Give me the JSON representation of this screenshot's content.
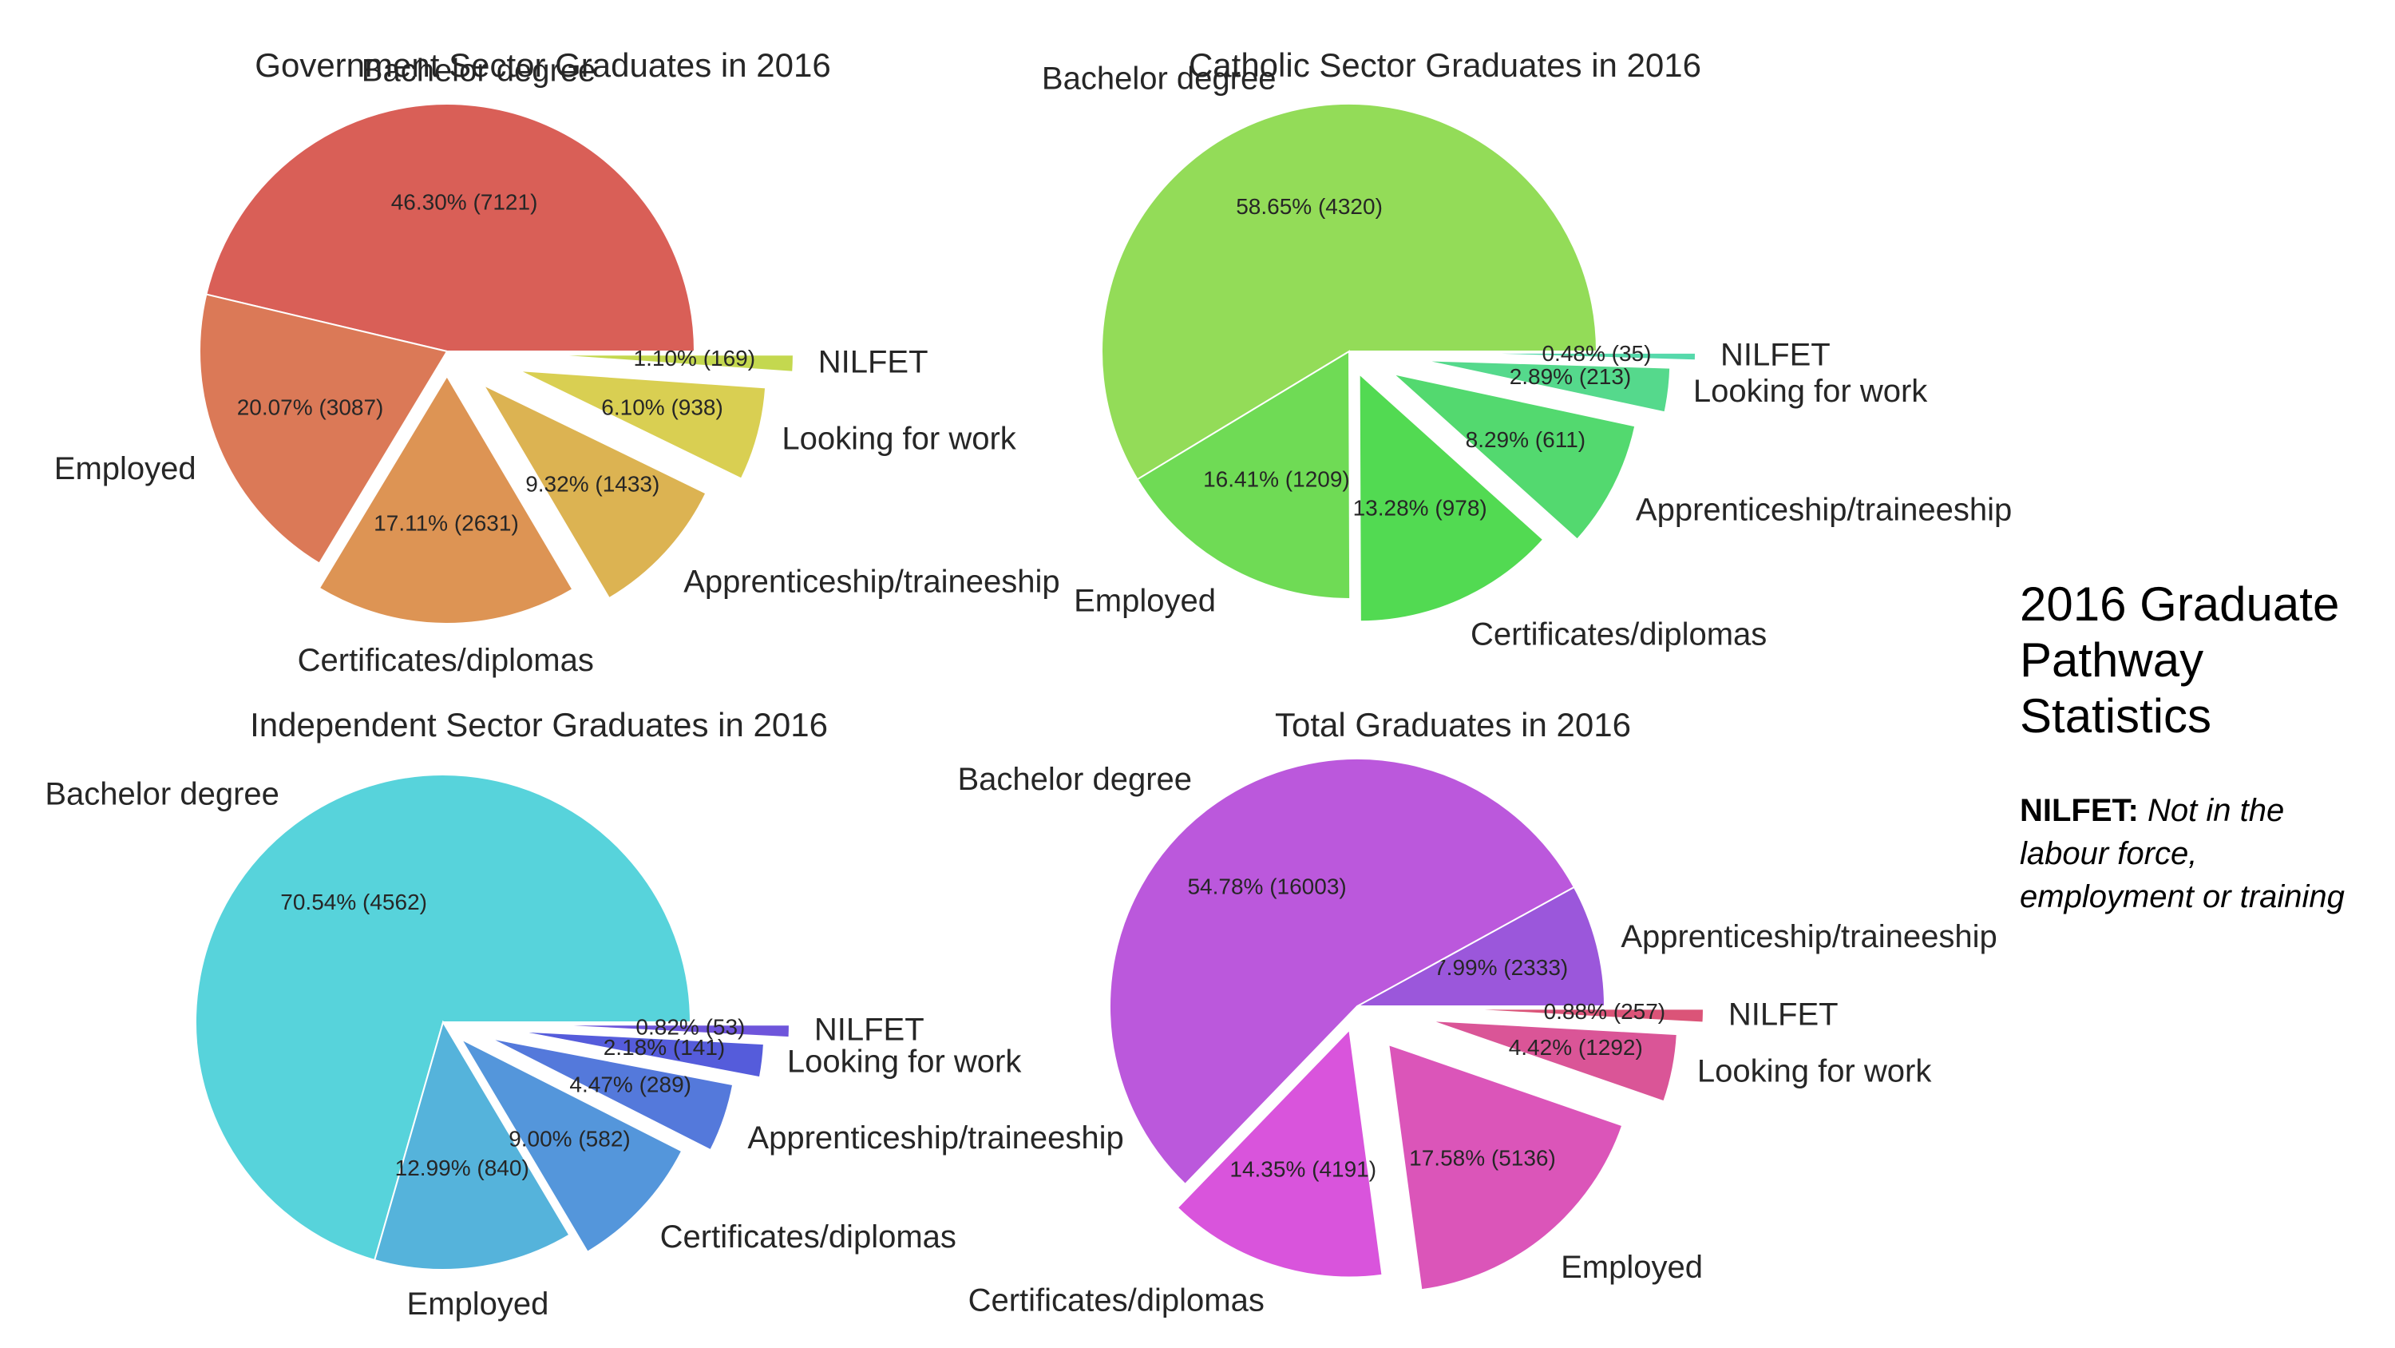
{
  "side_panel": {
    "title_lines": [
      "2016 Graduate",
      "Pathway",
      "Statistics"
    ],
    "note_term": "NILFET:",
    "note_lines": [
      "Not in the",
      "labour force,",
      "employment or training"
    ]
  },
  "chart_data": [
    {
      "type": "pie",
      "title": "Government Sector Graduates in 2016",
      "slices": [
        {
          "label": "Bachelor degree",
          "percent": 46.3,
          "count": 7121,
          "pct_text": "46.30%  (7121)",
          "color": "#d95f57",
          "explode": 0.0
        },
        {
          "label": "Employed",
          "percent": 20.07,
          "count": 3087,
          "pct_text": "20.07%  (3087)",
          "color": "#db7957",
          "explode": 0.0
        },
        {
          "label": "Certificates/diplomas",
          "percent": 17.11,
          "count": 2631,
          "pct_text": "17.11%  (2631)",
          "color": "#dd9454",
          "explode": 0.1
        },
        {
          "label": "Apprenticeship/traineeship",
          "percent": 9.32,
          "count": 1433,
          "pct_text": "9.32%  (1433)",
          "color": "#dcb352",
          "explode": 0.2
        },
        {
          "label": "Looking for work",
          "percent": 6.1,
          "count": 938,
          "pct_text": "6.10%  (938)",
          "color": "#d9cf52",
          "explode": 0.3
        },
        {
          "label": "NILFET",
          "percent": 1.1,
          "count": 169,
          "pct_text": "1.10%  (169)",
          "color": "#c4d84f",
          "explode": 0.4
        }
      ]
    },
    {
      "type": "pie",
      "title": "Catholic Sector Graduates in 2016",
      "slices": [
        {
          "label": "Bachelor degree",
          "percent": 58.65,
          "count": 4320,
          "pct_text": "58.65%  (4320)",
          "color": "#93dc58",
          "explode": 0.0
        },
        {
          "label": "Employed",
          "percent": 16.41,
          "count": 1209,
          "pct_text": "16.41%  (1209)",
          "color": "#6fdb55",
          "explode": 0.0
        },
        {
          "label": "Certificates/diplomas",
          "percent": 13.28,
          "count": 978,
          "pct_text": "13.28%  (978)",
          "color": "#52da52",
          "explode": 0.1
        },
        {
          "label": "Apprenticeship/traineeship",
          "percent": 8.29,
          "count": 611,
          "pct_text": "8.29%  (611)",
          "color": "#53d96f",
          "explode": 0.2
        },
        {
          "label": "Looking for work",
          "percent": 2.89,
          "count": 213,
          "pct_text": "2.89%  (213)",
          "color": "#55d98c",
          "explode": 0.3
        },
        {
          "label": "NILFET",
          "percent": 0.48,
          "count": 35,
          "pct_text": "0.48%  (35)",
          "color": "#56d9ab",
          "explode": 0.4
        }
      ]
    },
    {
      "type": "pie",
      "title": "Independent Sector Graduates in 2016",
      "slices": [
        {
          "label": "Bachelor degree",
          "percent": 70.54,
          "count": 4562,
          "pct_text": "70.54%  (4562)",
          "color": "#57d3db",
          "explode": 0.0
        },
        {
          "label": "Employed",
          "percent": 12.99,
          "count": 840,
          "pct_text": "12.99%  (840)",
          "color": "#55b3db",
          "explode": 0.0
        },
        {
          "label": "Certificates/diplomas",
          "percent": 9.0,
          "count": 582,
          "pct_text": "9.00%  (582)",
          "color": "#5496db",
          "explode": 0.1
        },
        {
          "label": "Apprenticeship/traineeship",
          "percent": 4.47,
          "count": 289,
          "pct_text": "4.47%  (289)",
          "color": "#5479db",
          "explode": 0.2
        },
        {
          "label": "Looking for work",
          "percent": 2.18,
          "count": 141,
          "pct_text": "2.18%  (141)",
          "color": "#555cdb",
          "explode": 0.3
        },
        {
          "label": "NILFET",
          "percent": 0.82,
          "count": 53,
          "pct_text": "0.82%  (53)",
          "color": "#6e55db",
          "explode": 0.4
        }
      ]
    },
    {
      "type": "pie",
      "title": "Total Graduates in 2016",
      "slices": [
        {
          "label": "Apprenticeship/traineeship",
          "percent": 7.99,
          "count": 2333,
          "pct_text": "7.99%  (2333)",
          "color": "#9b57db",
          "explode": 0.0
        },
        {
          "label": "Bachelor degree",
          "percent": 54.78,
          "count": 16003,
          "pct_text": "54.78%  (16003)",
          "color": "#bb58dc",
          "explode": 0.0
        },
        {
          "label": "Certificates/diplomas",
          "percent": 14.35,
          "count": 4191,
          "pct_text": "14.35%  (4191)",
          "color": "#d954dc",
          "explode": 0.1
        },
        {
          "label": "Employed",
          "percent": 17.58,
          "count": 5136,
          "pct_text": "17.58%  (5136)",
          "color": "#db55b9",
          "explode": 0.2
        },
        {
          "label": "Looking for work",
          "percent": 4.42,
          "count": 1292,
          "pct_text": "4.42%  (1292)",
          "color": "#da5597",
          "explode": 0.3
        },
        {
          "label": "NILFET",
          "percent": 0.88,
          "count": 257,
          "pct_text": "0.88%  (257)",
          "color": "#db5478",
          "explode": 0.4
        }
      ]
    }
  ]
}
